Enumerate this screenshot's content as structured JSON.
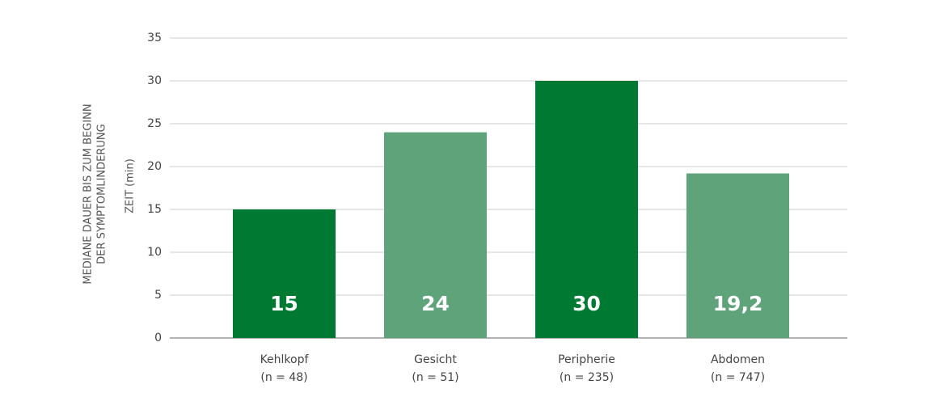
{
  "chart_data": {
    "type": "bar",
    "y_label": [
      "MEDIANE DAUER BIS ZUM BEGINN",
      "DER SYMPTOMLINDERUNG"
    ],
    "y_sublabel": "ZEIT (min)",
    "categories": [
      [
        "Kehlkopf",
        "(n = 48)"
      ],
      [
        "Gesicht",
        "(n = 51)"
      ],
      [
        "Peripherie",
        "(n = 235)"
      ],
      [
        "Abdomen",
        "(n = 747)"
      ]
    ],
    "values": [
      15,
      24,
      30,
      19.2
    ],
    "value_labels": [
      "15",
      "24",
      "30",
      "19,2"
    ],
    "colors": [
      "#007a33",
      "#5fa37a",
      "#007a33",
      "#5fa37a"
    ],
    "ylim": [
      0,
      35
    ],
    "yticks": [
      0,
      5,
      10,
      15,
      20,
      25,
      30,
      35
    ],
    "grid": true
  }
}
